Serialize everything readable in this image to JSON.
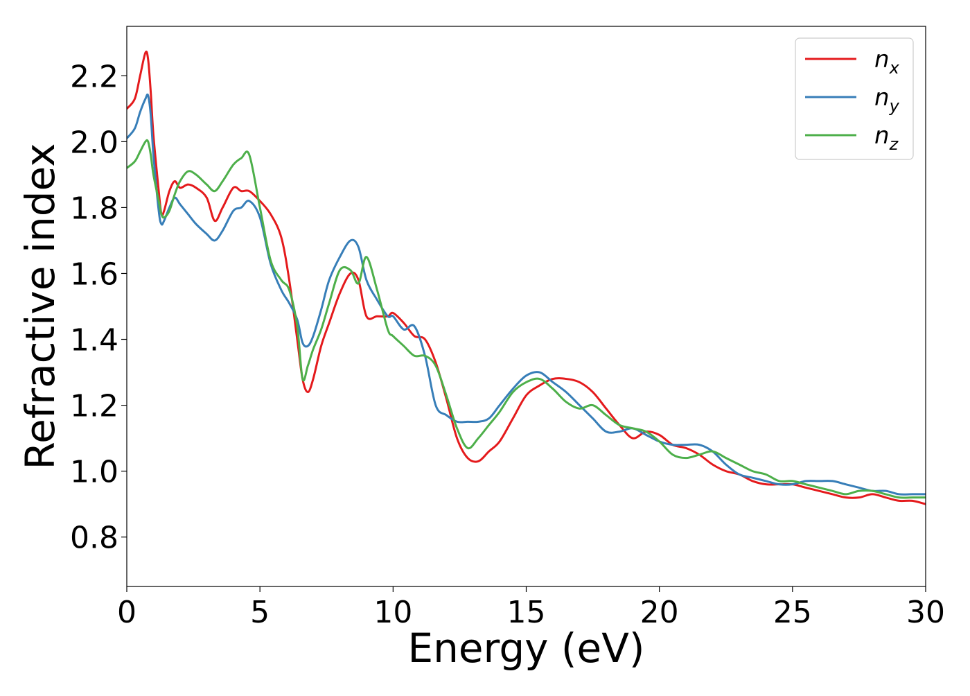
{
  "chart_data": {
    "type": "line",
    "title": "",
    "xlabel": "Energy (eV)",
    "ylabel": "Refractive index",
    "xlim": [
      0,
      30
    ],
    "ylim": [
      0.65,
      2.35
    ],
    "xticks": [
      0,
      5,
      10,
      15,
      20,
      25,
      30
    ],
    "xtick_labels": [
      "0",
      "5",
      "10",
      "15",
      "20",
      "25",
      "30"
    ],
    "yticks": [
      0.8,
      1.0,
      1.2,
      1.4,
      1.6,
      1.8,
      2.0,
      2.2
    ],
    "ytick_labels": [
      "0.8",
      "1.0",
      "1.2",
      "1.4",
      "1.6",
      "1.8",
      "2.0",
      "2.2"
    ],
    "grid": false,
    "legend_position": "top-right",
    "series": [
      {
        "name": "n_x",
        "legend_main": "n",
        "legend_sub": "x",
        "color": "#e41a1c",
        "x": [
          0,
          0.3,
          0.5,
          0.7,
          0.8,
          0.9,
          1.0,
          1.2,
          1.3,
          1.4,
          1.6,
          1.8,
          2.0,
          2.3,
          2.6,
          3.0,
          3.3,
          3.6,
          4.0,
          4.3,
          4.6,
          5.0,
          5.4,
          5.8,
          6.1,
          6.4,
          6.6,
          6.8,
          7.0,
          7.3,
          7.6,
          8.0,
          8.4,
          8.7,
          9.0,
          9.4,
          9.8,
          10.0,
          10.4,
          10.8,
          11.2,
          11.6,
          12.0,
          12.4,
          12.8,
          13.2,
          13.6,
          14.0,
          14.5,
          15.0,
          15.5,
          16.0,
          16.5,
          17.0,
          17.5,
          18.0,
          18.5,
          19.0,
          19.5,
          20.0,
          20.5,
          21.0,
          21.5,
          22.0,
          22.5,
          23.0,
          23.5,
          24.0,
          24.5,
          25.0,
          25.5,
          26.0,
          26.5,
          27.0,
          27.5,
          28.0,
          28.5,
          29.0,
          29.5,
          30.0
        ],
        "y": [
          2.1,
          2.13,
          2.2,
          2.27,
          2.25,
          2.15,
          2.02,
          1.85,
          1.78,
          1.79,
          1.85,
          1.88,
          1.86,
          1.87,
          1.86,
          1.83,
          1.76,
          1.8,
          1.86,
          1.85,
          1.85,
          1.82,
          1.78,
          1.71,
          1.58,
          1.4,
          1.28,
          1.24,
          1.28,
          1.38,
          1.45,
          1.54,
          1.6,
          1.58,
          1.47,
          1.47,
          1.47,
          1.48,
          1.45,
          1.41,
          1.4,
          1.33,
          1.22,
          1.1,
          1.04,
          1.03,
          1.06,
          1.09,
          1.16,
          1.23,
          1.26,
          1.28,
          1.28,
          1.27,
          1.24,
          1.19,
          1.14,
          1.1,
          1.12,
          1.11,
          1.08,
          1.07,
          1.05,
          1.02,
          1.0,
          0.99,
          0.97,
          0.96,
          0.96,
          0.96,
          0.95,
          0.94,
          0.93,
          0.92,
          0.92,
          0.93,
          0.92,
          0.91,
          0.91,
          0.9
        ]
      },
      {
        "name": "n_y",
        "legend_main": "n",
        "legend_sub": "y",
        "color": "#377eb8",
        "x": [
          0,
          0.3,
          0.5,
          0.7,
          0.8,
          0.9,
          1.0,
          1.2,
          1.3,
          1.4,
          1.6,
          1.8,
          2.0,
          2.3,
          2.6,
          3.0,
          3.3,
          3.6,
          4.0,
          4.3,
          4.6,
          5.0,
          5.4,
          5.8,
          6.1,
          6.4,
          6.6,
          6.8,
          7.0,
          7.3,
          7.6,
          8.0,
          8.4,
          8.7,
          9.0,
          9.4,
          9.8,
          10.0,
          10.4,
          10.8,
          11.2,
          11.6,
          12.0,
          12.4,
          12.8,
          13.2,
          13.6,
          14.0,
          14.5,
          15.0,
          15.5,
          16.0,
          16.5,
          17.0,
          17.5,
          18.0,
          18.5,
          19.0,
          19.5,
          20.0,
          20.5,
          21.0,
          21.5,
          22.0,
          22.5,
          23.0,
          23.5,
          24.0,
          24.5,
          25.0,
          25.5,
          26.0,
          26.5,
          27.0,
          27.5,
          28.0,
          28.5,
          29.0,
          29.5,
          30.0
        ],
        "y": [
          2.01,
          2.04,
          2.09,
          2.13,
          2.14,
          2.08,
          1.96,
          1.79,
          1.75,
          1.76,
          1.8,
          1.83,
          1.81,
          1.78,
          1.75,
          1.72,
          1.7,
          1.73,
          1.79,
          1.8,
          1.82,
          1.77,
          1.63,
          1.55,
          1.51,
          1.46,
          1.39,
          1.38,
          1.41,
          1.49,
          1.58,
          1.65,
          1.7,
          1.68,
          1.58,
          1.52,
          1.47,
          1.47,
          1.43,
          1.44,
          1.35,
          1.2,
          1.17,
          1.15,
          1.15,
          1.15,
          1.16,
          1.2,
          1.25,
          1.29,
          1.3,
          1.27,
          1.24,
          1.2,
          1.16,
          1.12,
          1.12,
          1.13,
          1.11,
          1.09,
          1.08,
          1.08,
          1.08,
          1.06,
          1.02,
          0.99,
          0.98,
          0.97,
          0.96,
          0.96,
          0.97,
          0.97,
          0.97,
          0.96,
          0.95,
          0.94,
          0.94,
          0.93,
          0.93,
          0.93
        ]
      },
      {
        "name": "n_z",
        "legend_main": "n",
        "legend_sub": "z",
        "color": "#4daf4a",
        "x": [
          0,
          0.3,
          0.5,
          0.7,
          0.8,
          0.9,
          1.0,
          1.2,
          1.3,
          1.4,
          1.6,
          1.8,
          2.0,
          2.3,
          2.6,
          3.0,
          3.3,
          3.6,
          4.0,
          4.3,
          4.6,
          5.0,
          5.4,
          5.8,
          6.1,
          6.4,
          6.6,
          6.8,
          7.0,
          7.3,
          7.6,
          8.0,
          8.4,
          8.7,
          9.0,
          9.4,
          9.8,
          10.0,
          10.4,
          10.8,
          11.2,
          11.6,
          12.0,
          12.4,
          12.8,
          13.2,
          13.6,
          14.0,
          14.5,
          15.0,
          15.5,
          16.0,
          16.5,
          17.0,
          17.5,
          18.0,
          18.5,
          19.0,
          19.5,
          20.0,
          20.5,
          21.0,
          21.5,
          22.0,
          22.5,
          23.0,
          23.5,
          24.0,
          24.5,
          25.0,
          25.5,
          26.0,
          26.5,
          27.0,
          27.5,
          28.0,
          28.5,
          29.0,
          29.5,
          30.0
        ],
        "y": [
          1.92,
          1.94,
          1.97,
          2.0,
          2.0,
          1.96,
          1.9,
          1.82,
          1.78,
          1.77,
          1.79,
          1.84,
          1.88,
          1.91,
          1.9,
          1.87,
          1.85,
          1.88,
          1.93,
          1.95,
          1.96,
          1.8,
          1.64,
          1.58,
          1.55,
          1.44,
          1.28,
          1.32,
          1.37,
          1.43,
          1.51,
          1.61,
          1.61,
          1.57,
          1.65,
          1.55,
          1.43,
          1.41,
          1.38,
          1.35,
          1.35,
          1.32,
          1.23,
          1.13,
          1.07,
          1.1,
          1.14,
          1.18,
          1.24,
          1.27,
          1.28,
          1.25,
          1.21,
          1.19,
          1.2,
          1.17,
          1.14,
          1.13,
          1.12,
          1.09,
          1.05,
          1.04,
          1.05,
          1.06,
          1.04,
          1.02,
          1.0,
          0.99,
          0.97,
          0.97,
          0.96,
          0.95,
          0.94,
          0.93,
          0.94,
          0.94,
          0.93,
          0.92,
          0.92,
          0.92
        ]
      }
    ]
  }
}
